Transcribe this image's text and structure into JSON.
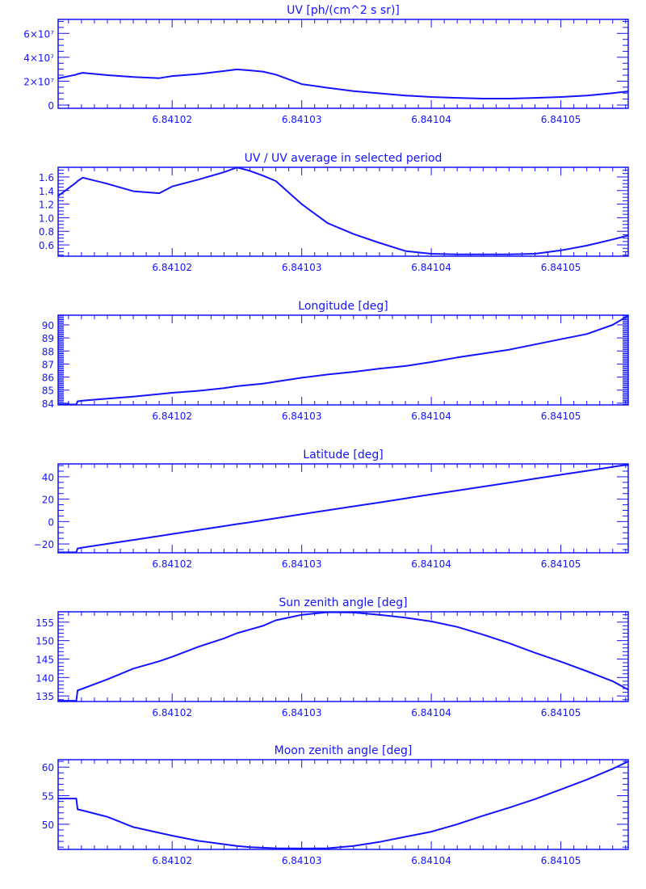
{
  "color": "#1414ff",
  "chart_data": [
    {
      "type": "line",
      "title": "UV [ph/(cm^2 s sr)]",
      "xlim": [
        6.8410112,
        6.8410552
      ],
      "ylim": [
        -2700000,
        71700000
      ],
      "x_ticks": [
        6.84102,
        6.84103,
        6.84104,
        6.84105
      ],
      "x_tick_labels": [
        "6.84102",
        "6.84103",
        "6.84104",
        "6.84105"
      ],
      "x_minor_step": 1e-06,
      "y_ticks": [
        0,
        20000000,
        40000000,
        60000000
      ],
      "y_tick_labels": [
        "0",
        "2×10⁷",
        "4×10⁷",
        "6×10⁷"
      ],
      "y_minor_step": 5000000,
      "x": [
        6.8410112,
        6.8410126,
        6.8410127,
        6.8410131,
        6.841015,
        6.841017,
        6.841019,
        6.84102,
        6.841022,
        6.841024,
        6.841025,
        6.841026,
        6.841027,
        6.841028,
        6.84103,
        6.841032,
        6.841034,
        6.841036,
        6.841038,
        6.84104,
        6.841042,
        6.841044,
        6.841046,
        6.841048,
        6.84105,
        6.841052,
        6.841054,
        6.8410552
      ],
      "y": [
        22300000.0,
        25500000.0,
        26000000.0,
        27000000.0,
        25000000.0,
        23500000.0,
        22500000.0,
        24300000.0,
        26000000.0,
        28500000.0,
        29800000.0,
        29000000.0,
        28000000.0,
        25500000.0,
        17500000.0,
        14500000.0,
        11700000.0,
        9800000.0,
        8000000.0,
        6800000.0,
        6000000.0,
        5400000.0,
        5400000.0,
        6000000.0,
        6800000.0,
        8000000.0,
        10000000.0,
        11500000.0
      ]
    },
    {
      "type": "line",
      "title": "UV / UV average in selected period",
      "xlim": [
        6.8410112,
        6.8410552
      ],
      "ylim": [
        0.434,
        1.742
      ],
      "x_ticks": [
        6.84102,
        6.84103,
        6.84104,
        6.84105
      ],
      "x_tick_labels": [
        "6.84102",
        "6.84103",
        "6.84104",
        "6.84105"
      ],
      "x_minor_step": 1e-06,
      "y_ticks": [
        0.6,
        0.8,
        1.0,
        1.2,
        1.4,
        1.6
      ],
      "y_tick_labels": [
        "0.6",
        "0.8",
        "1.0",
        "1.2",
        "1.4",
        "1.6"
      ],
      "y_minor_step": 0.05,
      "x": [
        6.8410112,
        6.8410126,
        6.8410127,
        6.8410131,
        6.841015,
        6.841017,
        6.841019,
        6.84102,
        6.841022,
        6.841024,
        6.841025,
        6.841026,
        6.841027,
        6.841028,
        6.84103,
        6.841032,
        6.841034,
        6.841036,
        6.841038,
        6.84104,
        6.841042,
        6.841044,
        6.841046,
        6.841048,
        6.84105,
        6.841052,
        6.841054,
        6.8410552
      ],
      "y": [
        1.32,
        1.52,
        1.54,
        1.59,
        1.5,
        1.39,
        1.36,
        1.46,
        1.56,
        1.67,
        1.74,
        1.69,
        1.62,
        1.54,
        1.2,
        0.92,
        0.76,
        0.63,
        0.51,
        0.47,
        0.46,
        0.46,
        0.46,
        0.47,
        0.52,
        0.59,
        0.68,
        0.74
      ]
    },
    {
      "type": "line",
      "title": "Longitude [deg]",
      "xlim": [
        6.8410112,
        6.8410552
      ],
      "ylim": [
        83.87,
        90.74
      ],
      "x_ticks": [
        6.84102,
        6.84103,
        6.84104,
        6.84105
      ],
      "x_tick_labels": [
        "6.84102",
        "6.84103",
        "6.84104",
        "6.84105"
      ],
      "x_minor_step": 1e-06,
      "y_ticks": [
        84,
        85,
        86,
        87,
        88,
        89,
        90
      ],
      "y_tick_labels": [
        "84",
        "85",
        "86",
        "87",
        "88",
        "89",
        "90"
      ],
      "y_minor_step": 0.1,
      "x": [
        6.8410112,
        6.8410126,
        6.8410127,
        6.8410131,
        6.841015,
        6.841017,
        6.841019,
        6.84102,
        6.841022,
        6.841024,
        6.841025,
        6.841026,
        6.841027,
        6.841028,
        6.84103,
        6.841032,
        6.841034,
        6.841036,
        6.841038,
        6.84104,
        6.841042,
        6.841044,
        6.841046,
        6.841048,
        6.84105,
        6.841052,
        6.841054,
        6.8410552
      ],
      "y": [
        83.9,
        83.9,
        84.15,
        84.2,
        84.35,
        84.5,
        84.7,
        84.8,
        84.95,
        85.15,
        85.3,
        85.4,
        85.5,
        85.65,
        85.95,
        86.2,
        86.4,
        86.65,
        86.85,
        87.15,
        87.5,
        87.8,
        88.1,
        88.5,
        88.9,
        89.3,
        90.0,
        90.7
      ]
    },
    {
      "type": "line",
      "title": "Latitude [deg]",
      "xlim": [
        6.8410112,
        6.8410552
      ],
      "ylim": [
        -27.9,
        51.5
      ],
      "x_ticks": [
        6.84102,
        6.84103,
        6.84104,
        6.84105
      ],
      "x_tick_labels": [
        "6.84102",
        "6.84103",
        "6.84104",
        "6.84105"
      ],
      "x_minor_step": 1e-06,
      "y_ticks": [
        -20,
        0,
        20,
        40
      ],
      "y_tick_labels": [
        "−20",
        "0",
        "20",
        "40"
      ],
      "y_minor_step": 5,
      "x": [
        6.8410112,
        6.8410126,
        6.8410127,
        6.8410131,
        6.841015,
        6.841017,
        6.841019,
        6.84102,
        6.841022,
        6.841024,
        6.841025,
        6.841026,
        6.841027,
        6.841028,
        6.84103,
        6.841032,
        6.841034,
        6.841036,
        6.841038,
        6.84104,
        6.841042,
        6.841044,
        6.841046,
        6.841048,
        6.84105,
        6.841052,
        6.841054,
        6.8410552
      ],
      "y": [
        -27.5,
        -27.5,
        -24,
        -23.2,
        -19.9,
        -16.4,
        -12.9,
        -11.1,
        -7.6,
        -4.1,
        -2.3,
        -0.6,
        1.2,
        2.95,
        6.6,
        10.1,
        13.6,
        17.1,
        20.7,
        24.2,
        27.7,
        31.2,
        34.7,
        38.3,
        41.8,
        45.3,
        48.8,
        51.0
      ]
    },
    {
      "type": "line",
      "title": "Sun zenith angle [deg]",
      "xlim": [
        6.8410112,
        6.8410552
      ],
      "ylim": [
        133.5,
        157.8
      ],
      "x_ticks": [
        6.84102,
        6.84103,
        6.84104,
        6.84105
      ],
      "x_tick_labels": [
        "6.84102",
        "6.84103",
        "6.84104",
        "6.84105"
      ],
      "x_minor_step": 1e-06,
      "y_ticks": [
        135,
        140,
        145,
        150,
        155
      ],
      "y_tick_labels": [
        "135",
        "140",
        "145",
        "150",
        "155"
      ],
      "y_minor_step": 1,
      "x": [
        6.8410112,
        6.8410126,
        6.8410127,
        6.8410131,
        6.841015,
        6.841017,
        6.841019,
        6.84102,
        6.841022,
        6.841024,
        6.841025,
        6.841026,
        6.841027,
        6.841028,
        6.84103,
        6.841032,
        6.841034,
        6.841036,
        6.841038,
        6.84104,
        6.841042,
        6.841044,
        6.841046,
        6.841048,
        6.84105,
        6.841052,
        6.841054,
        6.8410552
      ],
      "y": [
        133.7,
        133.7,
        136.5,
        137.0,
        139.5,
        142.4,
        144.4,
        145.6,
        148.3,
        150.6,
        152.0,
        153.0,
        154.0,
        155.5,
        157.0,
        157.7,
        157.6,
        157.0,
        156.2,
        155.2,
        153.7,
        151.6,
        149.3,
        146.7,
        144.3,
        141.7,
        139.0,
        136.7
      ]
    },
    {
      "type": "line",
      "title": "Moon zenith angle [deg]",
      "xlim": [
        6.8410112,
        6.8410552
      ],
      "ylim": [
        45.6,
        61.3
      ],
      "x_ticks": [
        6.84102,
        6.84103,
        6.84104,
        6.84105
      ],
      "x_tick_labels": [
        "6.84102",
        "6.84103",
        "6.84104",
        "6.84105"
      ],
      "x_minor_step": 1e-06,
      "y_ticks": [
        50,
        55,
        60
      ],
      "y_tick_labels": [
        "50",
        "55",
        "60"
      ],
      "y_minor_step": 1,
      "x": [
        6.8410112,
        6.8410126,
        6.8410127,
        6.8410131,
        6.841015,
        6.841017,
        6.841019,
        6.84102,
        6.841022,
        6.841024,
        6.841025,
        6.841026,
        6.841027,
        6.841028,
        6.84103,
        6.841032,
        6.841034,
        6.841036,
        6.841038,
        6.84104,
        6.841042,
        6.841044,
        6.841046,
        6.841048,
        6.84105,
        6.841052,
        6.841054,
        6.8410552
      ],
      "y": [
        54.5,
        54.5,
        52.6,
        52.4,
        51.3,
        49.5,
        48.5,
        48.0,
        47.1,
        46.5,
        46.2,
        46.0,
        45.9,
        45.8,
        45.75,
        45.8,
        46.2,
        46.9,
        47.8,
        48.7,
        50.0,
        51.5,
        52.9,
        54.4,
        56.1,
        57.8,
        59.7,
        61.0
      ]
    }
  ]
}
